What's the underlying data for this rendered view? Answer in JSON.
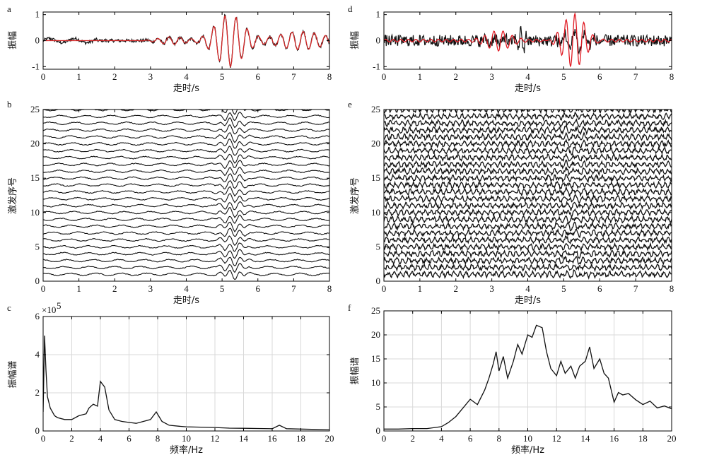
{
  "chart_data": [
    {
      "id": "a",
      "panel_label": "a",
      "type": "line",
      "xlabel": "走时/s",
      "ylabel": "振幅",
      "xlim": [
        0,
        8
      ],
      "ylim": [
        -1.1,
        1.1
      ],
      "xticks": [
        "0",
        "1",
        "2",
        "3",
        "4",
        "5",
        "6",
        "7",
        "8"
      ],
      "yticks": [
        "-1",
        "0",
        "1"
      ],
      "grid": false,
      "colors": {
        "trace": "#111111",
        "overlay": "#d62828"
      },
      "description_series": "black trace and red overlay; strong arrival 4.6–6 s with amplitude ~1"
    },
    {
      "id": "b",
      "panel_label": "b",
      "type": "line",
      "xlabel": "走时/s",
      "ylabel": "激发序号",
      "xlim": [
        0,
        8
      ],
      "ylim": [
        0,
        25
      ],
      "xticks": [
        "0",
        "1",
        "2",
        "3",
        "4",
        "5",
        "6",
        "7",
        "8"
      ],
      "yticks": [
        "0",
        "5",
        "10",
        "15",
        "20",
        "25"
      ],
      "grid": false,
      "trace_count": 25
    },
    {
      "id": "c",
      "panel_label": "c",
      "type": "line",
      "xlabel": "频率/Hz",
      "ylabel": "振幅谱",
      "scale_note": "×10",
      "scale_exp": "5",
      "xlim": [
        0,
        20
      ],
      "ylim": [
        0,
        6
      ],
      "xticks": [
        "0",
        "2",
        "4",
        "6",
        "8",
        "10",
        "12",
        "14",
        "16",
        "18",
        "20"
      ],
      "yticks": [
        "0",
        "2",
        "4",
        "6"
      ],
      "grid": true,
      "x": [
        0,
        0.1,
        0.2,
        0.3,
        0.5,
        0.8,
        1,
        1.5,
        2,
        2.5,
        3,
        3.2,
        3.5,
        3.8,
        4,
        4.3,
        4.6,
        5,
        5.5,
        6,
        6.5,
        7,
        7.5,
        7.9,
        8.3,
        8.8,
        9.5,
        10,
        11,
        12,
        13,
        14,
        15,
        16,
        16.5,
        17,
        18,
        19,
        20
      ],
      "y": [
        1.0,
        5.0,
        3.2,
        1.8,
        1.2,
        0.8,
        0.7,
        0.6,
        0.6,
        0.8,
        0.9,
        1.2,
        1.4,
        1.3,
        2.6,
        2.3,
        1.1,
        0.6,
        0.5,
        0.45,
        0.4,
        0.5,
        0.6,
        1.0,
        0.5,
        0.3,
        0.25,
        0.22,
        0.2,
        0.18,
        0.15,
        0.14,
        0.13,
        0.12,
        0.3,
        0.12,
        0.1,
        0.08,
        0.06
      ]
    },
    {
      "id": "d",
      "panel_label": "d",
      "type": "line",
      "xlabel": "走时/s",
      "ylabel": "振幅",
      "xlim": [
        0,
        8
      ],
      "ylim": [
        -1.1,
        1.1
      ],
      "xticks": [
        "0",
        "1",
        "2",
        "3",
        "4",
        "5",
        "6",
        "7",
        "8"
      ],
      "yticks": [
        "-1",
        "0",
        "1"
      ],
      "grid": false,
      "colors": {
        "trace": "#111111",
        "overlay": "#e01b24"
      }
    },
    {
      "id": "e",
      "panel_label": "e",
      "type": "line",
      "xlabel": "走时/s",
      "ylabel": "激发序号",
      "xlim": [
        0,
        8
      ],
      "ylim": [
        0,
        25
      ],
      "xticks": [
        "0",
        "1",
        "2",
        "3",
        "4",
        "5",
        "6",
        "7",
        "8"
      ],
      "yticks": [
        "0",
        "5",
        "10",
        "15",
        "20",
        "25"
      ],
      "grid": false,
      "trace_count": 25
    },
    {
      "id": "f",
      "panel_label": "f",
      "type": "line",
      "xlabel": "频率/Hz",
      "ylabel": "振幅谱",
      "xlim": [
        0,
        20
      ],
      "ylim": [
        0,
        25
      ],
      "xticks": [
        "0",
        "2",
        "4",
        "6",
        "8",
        "10",
        "12",
        "14",
        "16",
        "18",
        "20"
      ],
      "yticks": [
        "0",
        "5",
        "10",
        "15",
        "20",
        "25"
      ],
      "grid": true,
      "x": [
        0,
        1,
        2,
        3,
        4,
        4.5,
        5,
        5.5,
        6,
        6.5,
        7,
        7.3,
        7.6,
        7.8,
        8,
        8.3,
        8.6,
        9,
        9.3,
        9.6,
        10,
        10.3,
        10.6,
        11,
        11.3,
        11.6,
        12,
        12.3,
        12.6,
        13,
        13.3,
        13.6,
        14,
        14.3,
        14.6,
        15,
        15.3,
        15.6,
        16,
        16.3,
        16.6,
        17,
        17.5,
        18,
        18.5,
        19,
        19.5,
        20
      ],
      "y": [
        0.4,
        0.4,
        0.5,
        0.5,
        0.9,
        1.8,
        3.0,
        4.8,
        6.6,
        5.5,
        8.5,
        11.0,
        14.0,
        16.5,
        12.5,
        15.5,
        11.0,
        14.5,
        18.0,
        16.0,
        20.0,
        19.5,
        22.0,
        21.5,
        16.5,
        13.0,
        11.5,
        14.5,
        12.0,
        13.5,
        11.0,
        13.5,
        14.5,
        17.5,
        13.0,
        15.0,
        12.0,
        11.0,
        6.0,
        8.0,
        7.5,
        7.8,
        6.5,
        5.5,
        6.2,
        4.8,
        5.2,
        4.6
      ]
    }
  ]
}
